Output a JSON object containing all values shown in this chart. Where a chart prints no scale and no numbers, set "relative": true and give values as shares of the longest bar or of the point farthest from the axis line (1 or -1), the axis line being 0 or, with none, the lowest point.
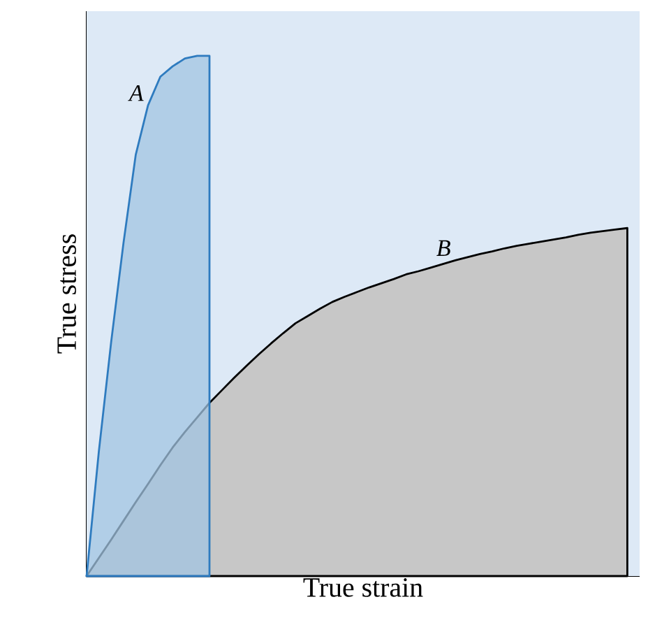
{
  "chart_data": {
    "type": "area",
    "relative": true,
    "xlabel": "True strain",
    "ylabel": "True stress",
    "categories": [
      null,
      null,
      null,
      null,
      null,
      null,
      null,
      null,
      null,
      null,
      null,
      null,
      null,
      null,
      null,
      null,
      null,
      null,
      null,
      null,
      null,
      null,
      null,
      null,
      null,
      null,
      null,
      null,
      null,
      null,
      null,
      null,
      null,
      null,
      null,
      null,
      null,
      null,
      null,
      null,
      null,
      null,
      null,
      null,
      null,
      null
    ],
    "series": [
      {
        "name": "A",
        "color": "#2e7bbf",
        "values": [
          0,
          0.24,
          0.45,
          0.64,
          0.81,
          0.905,
          0.96,
          0.98,
          0.995,
          1.0,
          1.0,
          null,
          null,
          null,
          null,
          null,
          null,
          null,
          null,
          null,
          null,
          null,
          null,
          null,
          null,
          null,
          null,
          null,
          null,
          null,
          null,
          null,
          null,
          null,
          null,
          null,
          null,
          null,
          null,
          null,
          null,
          null,
          null,
          null,
          null,
          null
        ]
      },
      {
        "name": "B",
        "color": "#000000",
        "values": [
          0,
          0.035,
          0.07,
          0.106,
          0.142,
          0.177,
          0.213,
          0.247,
          0.277,
          0.305,
          0.333,
          0.357,
          0.381,
          0.404,
          0.426,
          0.447,
          0.467,
          0.486,
          0.5,
          0.514,
          0.527,
          0.537,
          0.546,
          0.555,
          0.563,
          0.571,
          0.58,
          0.586,
          0.593,
          0.6,
          0.607,
          0.613,
          0.619,
          0.624,
          0.63,
          0.635,
          0.639,
          0.643,
          0.647,
          0.651,
          0.656,
          0.66,
          0.663,
          0.666,
          0.669,
          null
        ]
      }
    ]
  }
}
